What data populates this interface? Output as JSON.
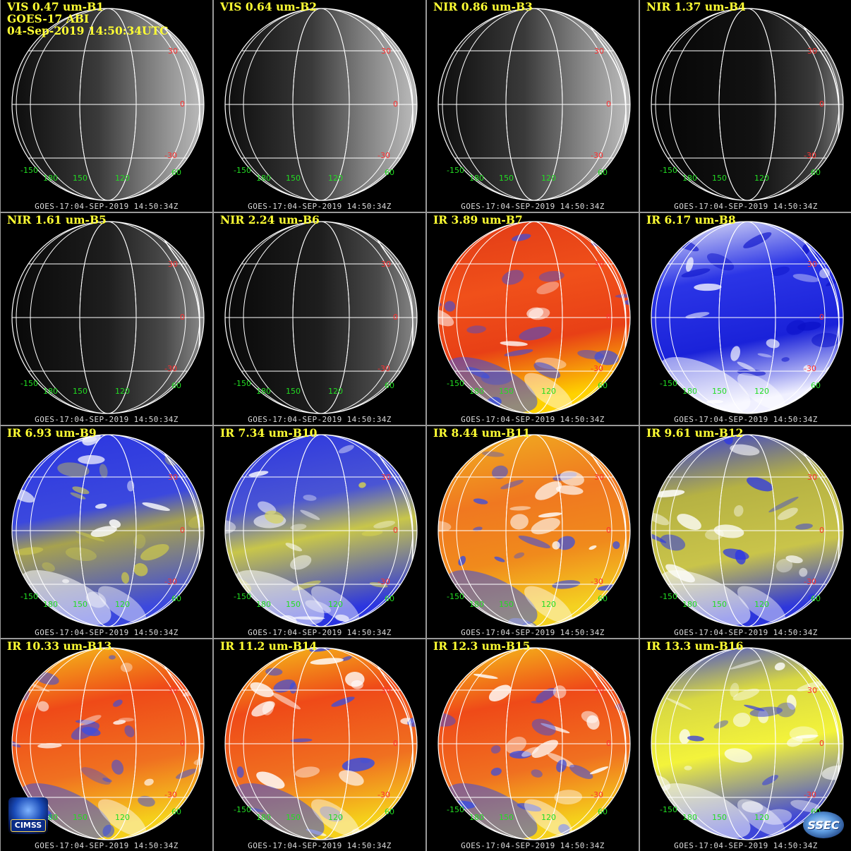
{
  "header": {
    "satellite": "GOES-17 ABI",
    "datetime": "04-Sep-2019 14:50:34UTC"
  },
  "footer_text": "GOES-17:04-SEP-2019 14:50:34Z",
  "grid_labels": {
    "lat_north": "30",
    "lat_equator": "0",
    "lat_south": "-30",
    "lat_south2": "60",
    "lon_a": "-150",
    "lon_b": "180",
    "lon_c": "150",
    "lon_d": "120"
  },
  "panels": [
    {
      "label": "VIS 0.47 um-B1",
      "palette": "gray"
    },
    {
      "label": "VIS 0.64 um-B2",
      "palette": "gray"
    },
    {
      "label": "NIR 0.86 um-B3",
      "palette": "gray"
    },
    {
      "label": "NIR 1.37 um-B4",
      "palette": "dark"
    },
    {
      "label": "NIR 1.61 um-B5",
      "palette": "dimgray"
    },
    {
      "label": "NIR 2.24 um-B6",
      "palette": "dimgray"
    },
    {
      "label": "IR 3.89 um-B7",
      "palette": "red"
    },
    {
      "label": "IR 6.17 um-B8",
      "palette": "wv-blue"
    },
    {
      "label": "IR 6.93 um-B9",
      "palette": "wv-mixed"
    },
    {
      "label": "IR 7.34 um-B10",
      "palette": "wv-yellow"
    },
    {
      "label": "IR 8.44 um-B11",
      "palette": "orange"
    },
    {
      "label": "IR 9.61 um-B12",
      "palette": "olive"
    },
    {
      "label": "IR 10.33 um-B13",
      "palette": "red-orange"
    },
    {
      "label": "IR 11.2 um-B14",
      "palette": "red-orange"
    },
    {
      "label": "IR 12.3 um-B15",
      "palette": "red-orange"
    },
    {
      "label": "IR 13.3 um-B16",
      "palette": "yellow"
    }
  ],
  "logos": {
    "left": "CIMSS",
    "right": "SSEC"
  },
  "colors": {
    "label_yellow": "#ffff33",
    "grid_line": "#ffffff",
    "lat_label_red": "#ff3030",
    "lon_label_green": "#22dd22",
    "footer_gray": "#dcdcdc"
  }
}
